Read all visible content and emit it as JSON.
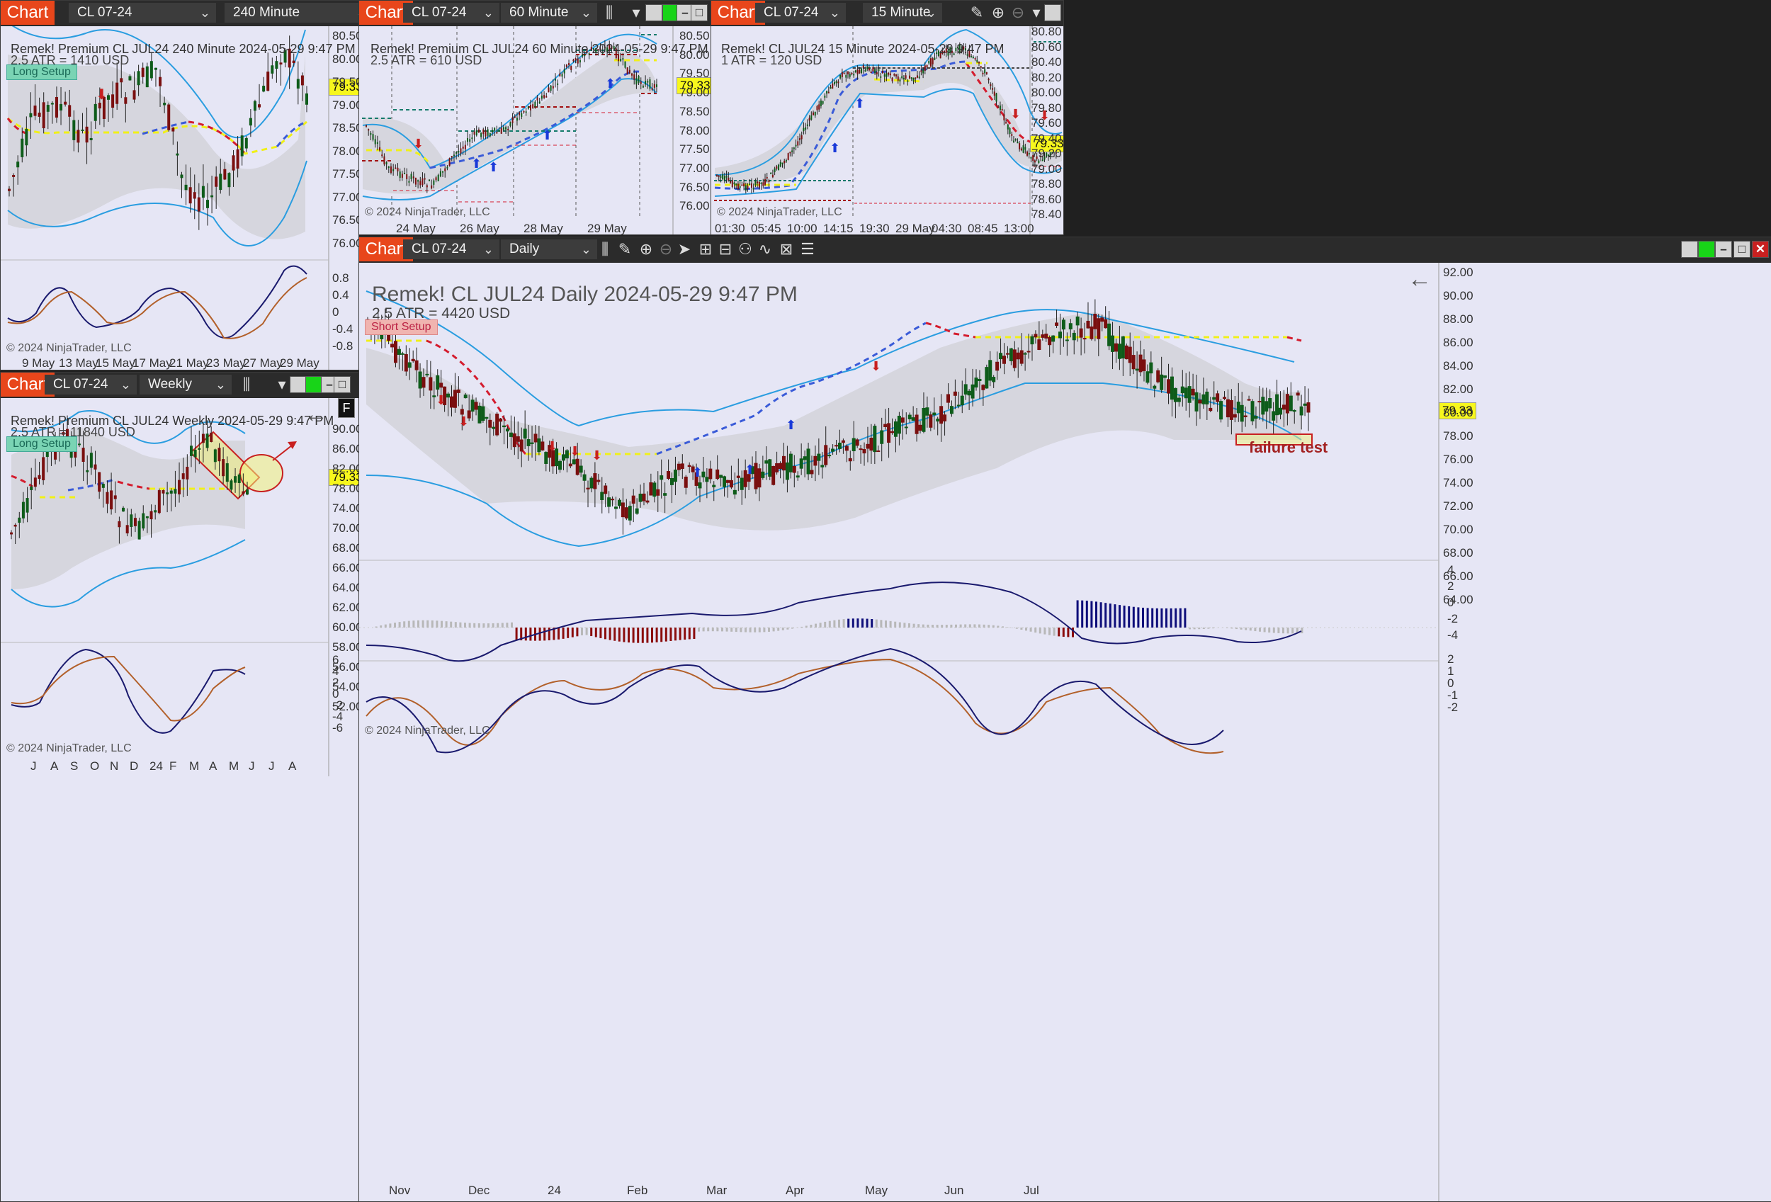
{
  "windows": [
    {
      "id": "w240",
      "tab": "Chart",
      "instrument": "CL 07-24",
      "interval": "240 Minute",
      "header": "Remek!  Premium  CL JUL24  240 Minute  2024-05-29 9:47 PM",
      "atr": "2.5 ATR = 1410 USD",
      "setup": "Long Setup",
      "last": "79.33",
      "copyright": "© 2024 NinjaTrader, LLC",
      "yticks": [
        "80.50",
        "80.00",
        "79.50",
        "79.00",
        "78.50",
        "78.00",
        "77.50",
        "77.00",
        "76.50",
        "76.00"
      ],
      "osc_ticks": [
        "0.8",
        "0.4",
        "0",
        "-0.4",
        "-0.8"
      ],
      "xticks": [
        "9 May",
        "13 May",
        "15 May",
        "17 May",
        "21 May",
        "23 May",
        "27 May",
        "29 May"
      ]
    },
    {
      "id": "w60",
      "tab": "Chart",
      "instrument": "CL 07-24",
      "interval": "60 Minute",
      "header": "Remek!  Premium  CL JUL24  60 Minute  2024-05-29 9:47 PM",
      "atr": "2.5 ATR = 610 USD",
      "last": "79.33",
      "copyright": "© 2024 NinjaTrader, LLC",
      "yticks": [
        "80.50",
        "80.00",
        "79.50",
        "79.00",
        "78.50",
        "78.00",
        "77.50",
        "77.00",
        "76.50",
        "76.00"
      ],
      "xticks": [
        "24 May",
        "26 May",
        "28 May",
        "29 May"
      ]
    },
    {
      "id": "w15",
      "tab": "Chart",
      "instrument": "CL 07-24",
      "interval": "15 Minute",
      "header": "Remek!  CL JUL24  15 Minute  2024-05-29 9:47 PM",
      "atr": "1 ATR = 120 USD",
      "last": "79.33",
      "copyright": "© 2024 NinjaTrader, LLC",
      "yticks": [
        "80.80",
        "80.60",
        "80.40",
        "80.20",
        "80.00",
        "79.80",
        "79.60",
        "79.40",
        "79.20",
        "79.00",
        "78.80",
        "78.60",
        "78.40"
      ],
      "xticks": [
        "01:30",
        "05:45",
        "10:00",
        "14:15",
        "19:30",
        "29 May",
        "04:30",
        "08:45",
        "13:00"
      ]
    },
    {
      "id": "wW",
      "tab": "Chart",
      "instrument": "CL 07-24",
      "interval": "Weekly",
      "header": "Remek!  Premium  CL JUL24  Weekly  2024-05-29 9:47 PM",
      "atr": "2.5 ATR = 11840 USD",
      "setup": "Long Setup",
      "last": "79.33",
      "copyright": "© 2024 NinjaTrader, LLC",
      "f_button": "F",
      "yticks": [
        "90.00",
        "86.00",
        "82.00",
        "78.00",
        "74.00",
        "70.00",
        "68.00",
        "66.00",
        "64.00",
        "62.00",
        "60.00",
        "58.00",
        "56.00",
        "54.00",
        "52.00"
      ],
      "osc_ticks": [
        "6",
        "4",
        "2",
        "0",
        "-2",
        "-4",
        "-6"
      ],
      "xticks": [
        "J",
        "A",
        "S",
        "O",
        "N",
        "D",
        "24",
        "F",
        "M",
        "A",
        "M",
        "J",
        "J",
        "A"
      ]
    },
    {
      "id": "wD",
      "tab": "Chart",
      "instrument": "CL 07-24",
      "interval": "Daily",
      "header": "Remek!  CL JUL24  Daily  2024-05-29 9:47 PM",
      "atr": "2.5 ATR = 4420 USD",
      "setup": "Short Setup",
      "last": "79.33",
      "copyright": "© 2024 NinjaTrader, LLC",
      "annotation": "failure test",
      "yticks": [
        "92.00",
        "90.00",
        "88.00",
        "86.00",
        "84.00",
        "82.00",
        "80.00",
        "78.00",
        "76.00",
        "74.00",
        "72.00",
        "70.00",
        "68.00",
        "66.00",
        "64.00"
      ],
      "hist_ticks": [
        "4",
        "2",
        "0",
        "-2",
        "-4"
      ],
      "osc_ticks": [
        "2",
        "1",
        "0",
        "-1",
        "-2"
      ],
      "xticks": [
        "Nov",
        "Dec",
        "24",
        "Feb",
        "Mar",
        "Apr",
        "May",
        "Jun",
        "Jul"
      ]
    }
  ],
  "colors": {
    "tab": "#e8461b",
    "bg": "#e6e6f5",
    "up": "#0e5c1a",
    "down": "#7a0f0f",
    "band": "#2a9de0",
    "red_dash": "#d41c2e",
    "blue_dash": "#3a5bd8",
    "yellow_dash": "#f0f018",
    "osc_fast": "#1a1a6e",
    "osc_slow": "#b2602a"
  }
}
